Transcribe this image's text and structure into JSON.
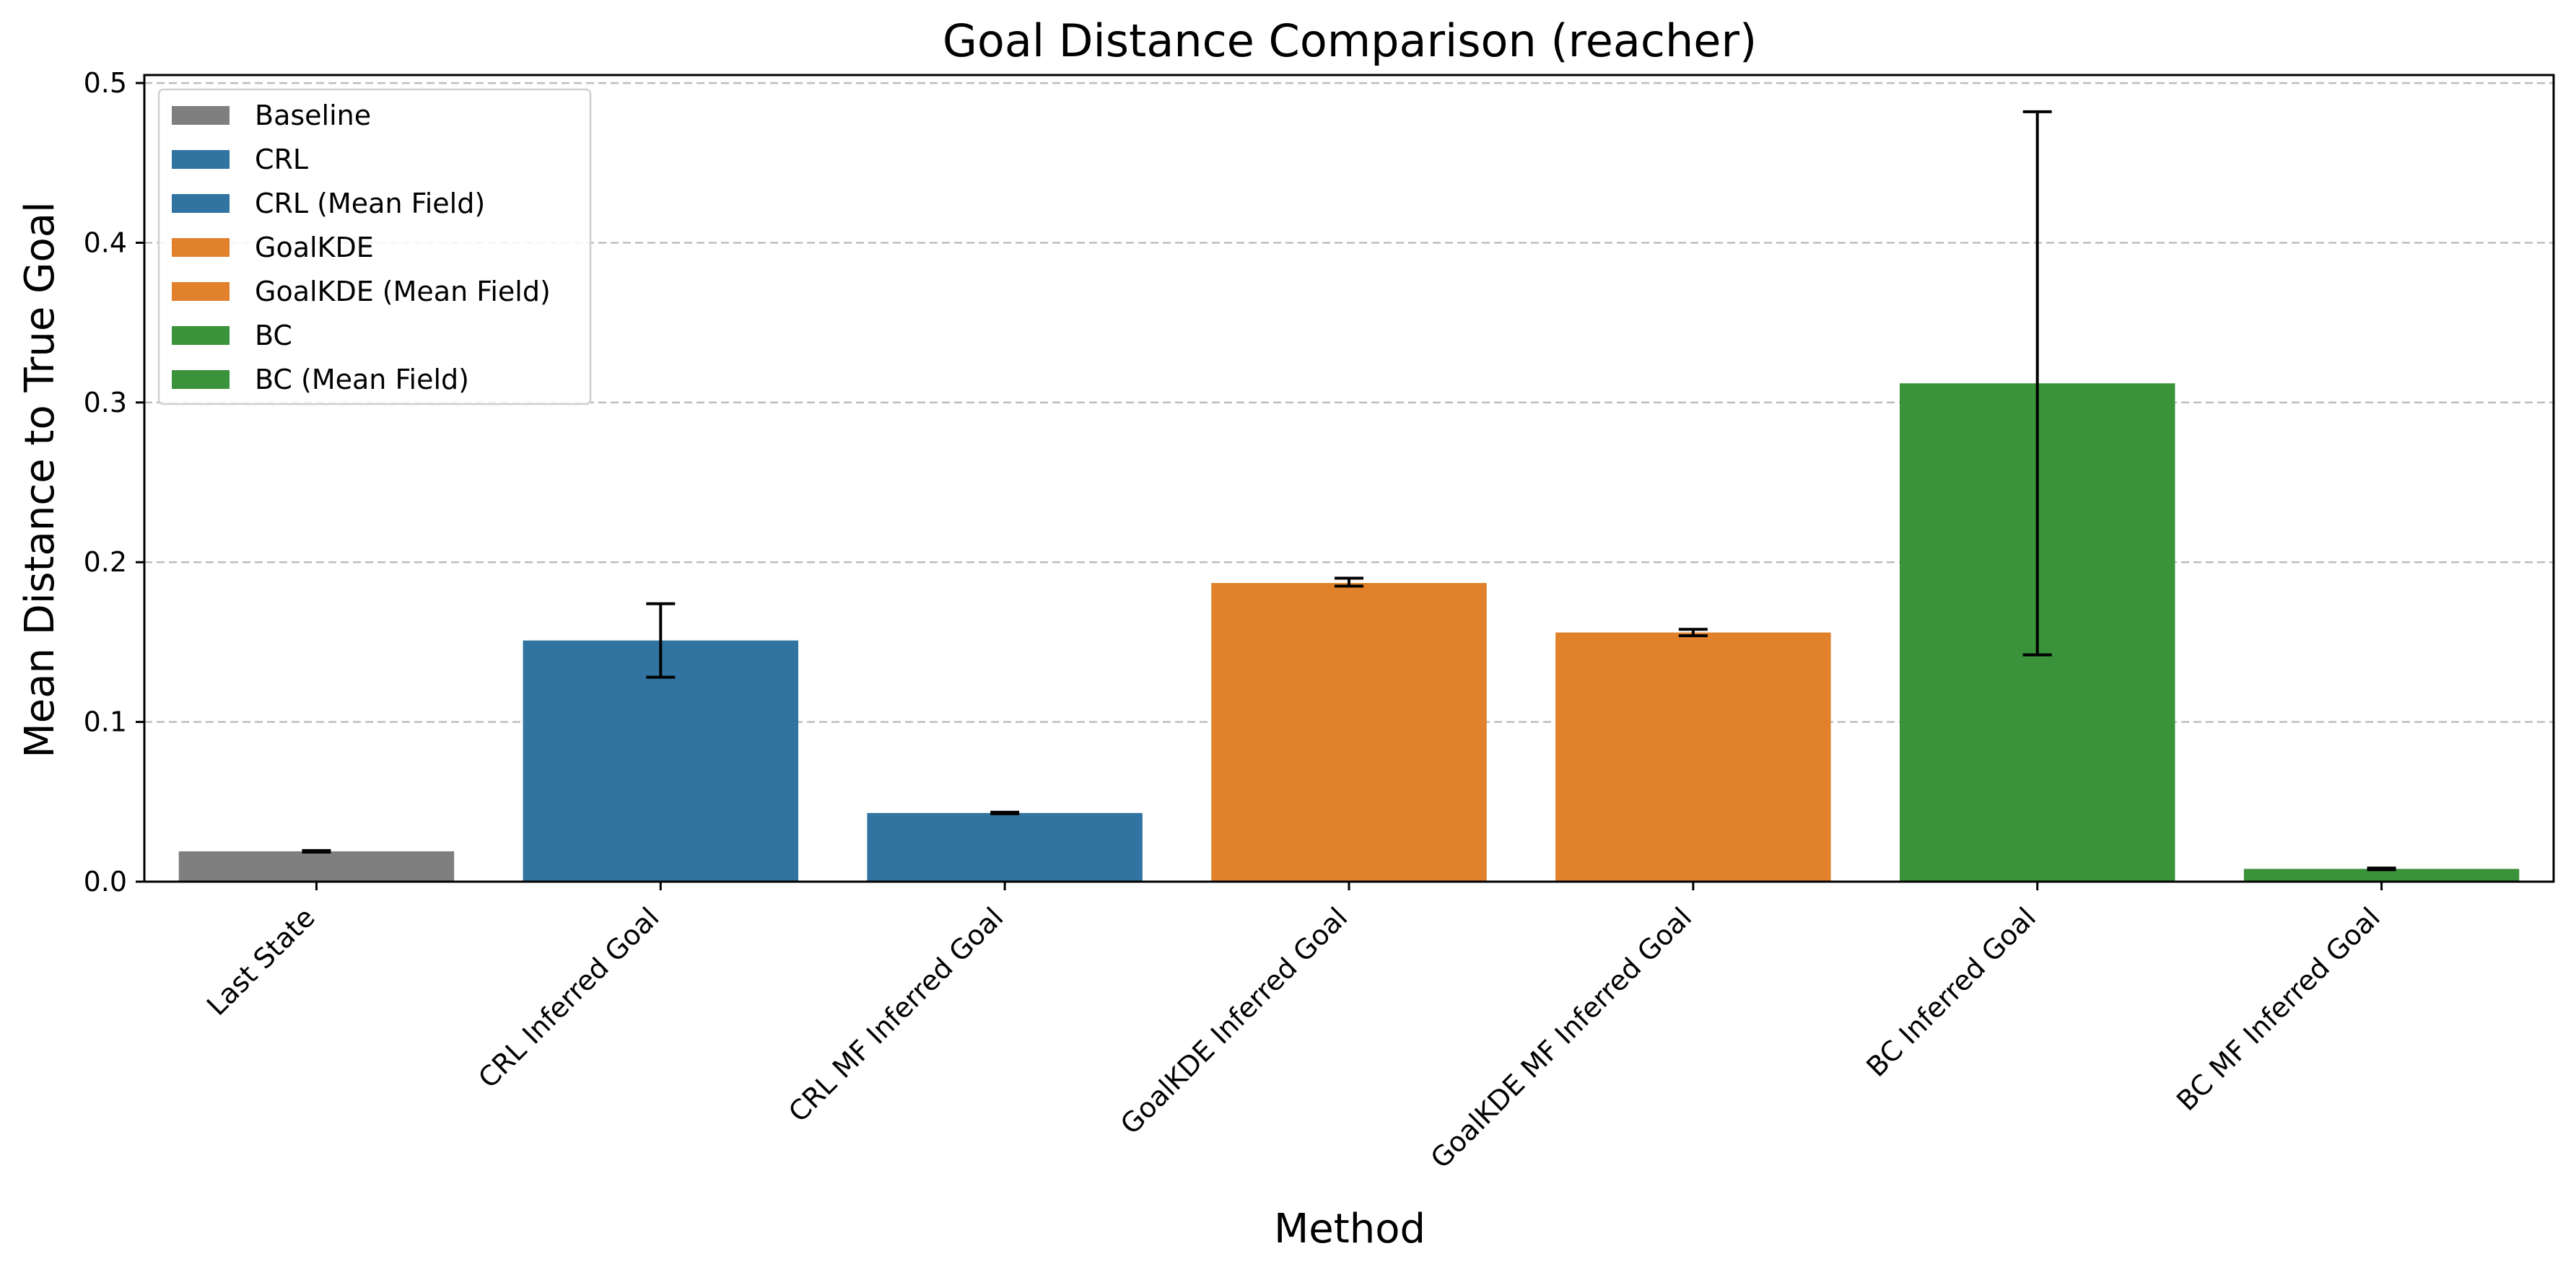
{
  "chart_data": {
    "type": "bar",
    "title": "Goal Distance Comparison (reacher)",
    "xlabel": "Method",
    "ylabel": "Mean Distance to True Goal",
    "ylim": [
      0,
      0.505
    ],
    "yticks": [
      0.0,
      0.1,
      0.2,
      0.3,
      0.4,
      0.5
    ],
    "ytick_labels": [
      "0.0",
      "0.1",
      "0.2",
      "0.3",
      "0.4",
      "0.5"
    ],
    "grid": "y-dashed",
    "legend_position": "top-left",
    "categories": [
      "Last State",
      "CRL Inferred Goal",
      "CRL MF Inferred Goal",
      "GoalKDE Inferred Goal",
      "GoalKDE MF Inferred Goal",
      "BC Inferred Goal",
      "BC MF Inferred Goal"
    ],
    "values": [
      0.019,
      0.151,
      0.043,
      0.187,
      0.156,
      0.312,
      0.008
    ],
    "error_low": [
      0.0185,
      0.128,
      0.0425,
      0.185,
      0.154,
      0.142,
      0.0075
    ],
    "error_high": [
      0.0195,
      0.174,
      0.0435,
      0.19,
      0.158,
      0.482,
      0.0085
    ],
    "bar_series": [
      "Baseline",
      "CRL",
      "CRL (Mean Field)",
      "GoalKDE",
      "GoalKDE (Mean Field)",
      "BC",
      "BC (Mean Field)"
    ],
    "legend": [
      {
        "label": "Baseline",
        "color": "#7f7f7f"
      },
      {
        "label": "CRL",
        "color": "#3274a1"
      },
      {
        "label": "CRL (Mean Field)",
        "color": "#3274a1"
      },
      {
        "label": "GoalKDE",
        "color": "#e1812c"
      },
      {
        "label": "GoalKDE (Mean Field)",
        "color": "#e1812c"
      },
      {
        "label": "BC",
        "color": "#3a923a"
      },
      {
        "label": "BC (Mean Field)",
        "color": "#3a923a"
      }
    ]
  }
}
